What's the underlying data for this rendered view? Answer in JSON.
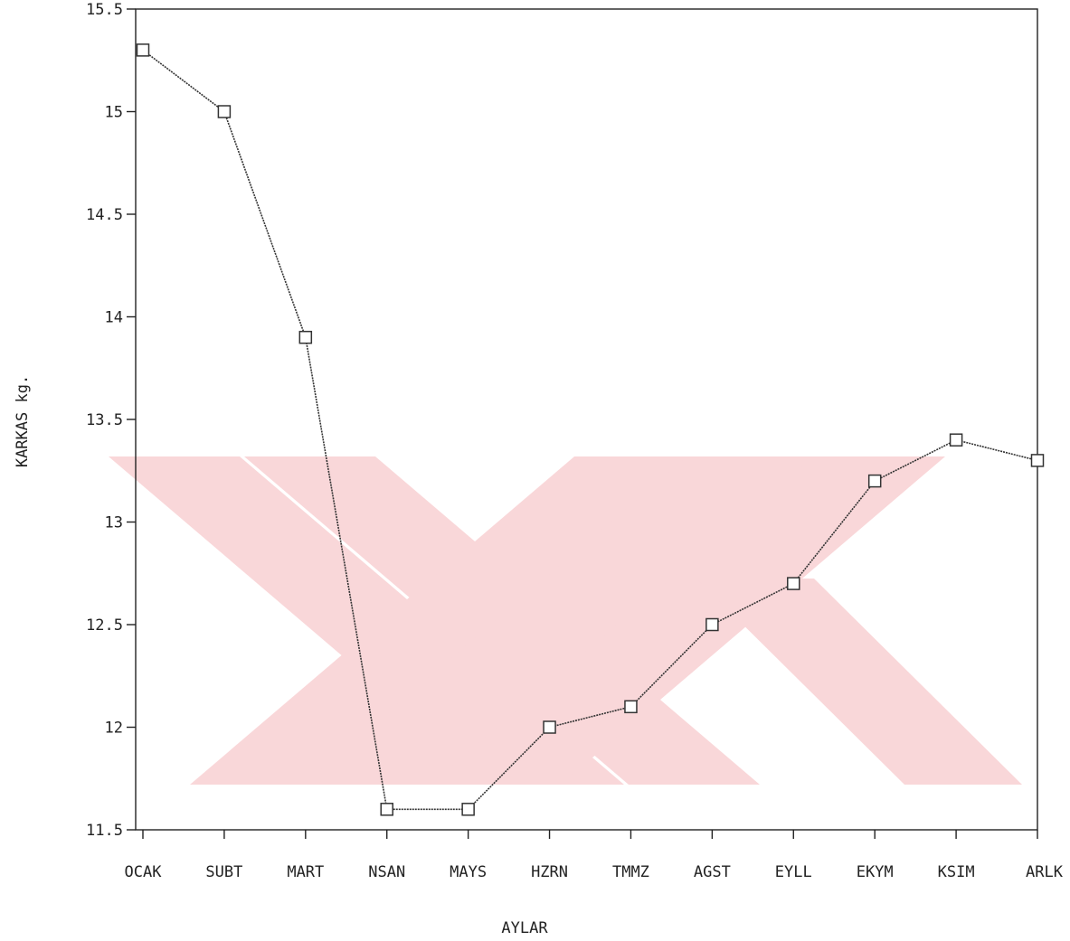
{
  "chart_data": {
    "type": "line",
    "title": "",
    "xlabel": "AYLAR",
    "ylabel": "KARKAS kg.",
    "categories": [
      "OCAK",
      "SUBT",
      "MART",
      "NSAN",
      "MAYS",
      "HZRN",
      "TMMZ",
      "AGST",
      "EYLL",
      "EKYM",
      "KSIM",
      "ARLK"
    ],
    "series": [
      {
        "values": [
          15.3,
          15.0,
          13.9,
          11.6,
          11.6,
          12.0,
          12.1,
          12.5,
          12.7,
          13.2,
          13.4,
          13.3
        ]
      }
    ],
    "ylim": [
      11.5,
      15.5
    ],
    "yticks": [
      "11.5",
      "12",
      "12.5",
      "13",
      "13.5",
      "14",
      "14.5",
      "15",
      "15.5"
    ],
    "grid": false,
    "marker": "square",
    "colors": {
      "line": "#333333",
      "axis": "#222222",
      "watermark": "#f9d3d5"
    }
  }
}
